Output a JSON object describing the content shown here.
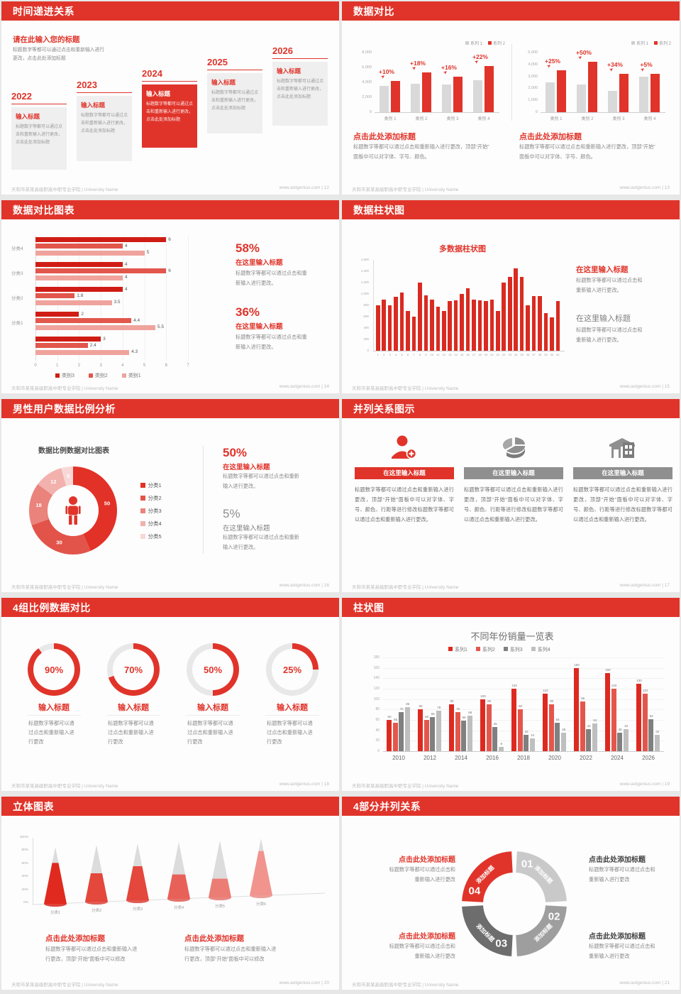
{
  "footer": {
    "left": "天和市某某高级职高中职专业学院 | University Name",
    "site": "www.aotgenius.com"
  },
  "colors": {
    "accent": "#e0342a",
    "red_mid": "#e4564c",
    "red_light": "#f0a39d",
    "gray_bar": "#d9d9d9",
    "gray_dark": "#808080",
    "gray_light": "#bfbfbf"
  },
  "slides": {
    "s12": {
      "title": "时间递进关系",
      "footer_right": "www.aotgenius.com  | 12",
      "heading": "请在此输入您的标题",
      "body_lines": [
        "标题数字等都可以通过点击和重新输入进行",
        "更改，点击此处添加标题"
      ],
      "years": [
        "2022",
        "2023",
        "2024",
        "2025",
        "2026"
      ],
      "highlight_index": 2,
      "item_title": "输入标题",
      "item_body": "标题数字等都可以通过点击和重新输入进行更改，点击此处添加标题"
    },
    "s13": {
      "title": "数据对比",
      "footer_right": "www.aotgenius.com  | 13",
      "legend": [
        "系列 1",
        "系列 2"
      ],
      "heading": "点击此处添加标题",
      "body_lines": [
        "标题数字等都可以通过点击和重新输入进行更改，顶部“开始”",
        "面板中可以对字体、字号、颜色。"
      ],
      "charts": [
        {
          "type": "bar",
          "ymax": 8000,
          "yticks": [
            "8,000",
            "6,000",
            "4,000",
            "2,000",
            "0"
          ],
          "categories": [
            "类别 1",
            "类别 2",
            "类别 3",
            "类别 4"
          ],
          "series": [
            {
              "name": "系列 1",
              "values": [
                3500,
                3800,
                3700,
                4300
              ]
            },
            {
              "name": "系列 2",
              "values": [
                4200,
                5300,
                4800,
                6200
              ]
            }
          ],
          "labels": [
            "+10%",
            "+18%",
            "+16%",
            "+22%"
          ]
        },
        {
          "type": "bar",
          "ymax": 5000,
          "yticks": [
            "5,000",
            "4,000",
            "3,000",
            "2,000",
            "1,000",
            "0"
          ],
          "categories": [
            "类别 1",
            "类别 2",
            "类别 3",
            "类别 4"
          ],
          "series": [
            {
              "name": "系列 1",
              "values": [
                2500,
                2300,
                1800,
                3000
              ]
            },
            {
              "name": "系列 2",
              "values": [
                3500,
                4200,
                3200,
                3200
              ]
            }
          ],
          "labels": [
            "+25%",
            "+50%",
            "+34%",
            "+5%"
          ]
        }
      ]
    },
    "s14": {
      "title": "数据对比图表",
      "footer_right": "www.aotgenius.com  | 14",
      "chart": {
        "type": "bar-horizontal",
        "xmax": 7,
        "xticks": [
          "0",
          "1",
          "2",
          "3",
          "4",
          "5",
          "6",
          "7"
        ],
        "groups": [
          {
            "label": "分类4",
            "values": [
              6,
              4,
              5
            ]
          },
          {
            "label": "分类3",
            "values": [
              4,
              6,
              4
            ]
          },
          {
            "label": "分类2",
            "values": [
              4,
              1.8,
              3.5
            ]
          },
          {
            "label": "分类1",
            "values": [
              2,
              4.4,
              5.5
            ]
          },
          {
            "label": "",
            "values": [
              3,
              2.4,
              4.3
            ]
          }
        ],
        "legend": [
          "类别3",
          "类别2",
          "类别1"
        ]
      },
      "stats": [
        {
          "pct": "58%",
          "heading": "在这里输入标题",
          "body_lines": [
            "标题数字等都可以通过点击和重",
            "新输入进行更改。"
          ]
        },
        {
          "pct": "36%",
          "heading": "在这里输入标题",
          "body_lines": [
            "标题数字等都可以通过点击和重",
            "新输入进行更改。"
          ]
        }
      ]
    },
    "s15": {
      "title": "数据柱状图",
      "footer_right": "www.aotgenius.com  | 15",
      "chart_title": "多数据柱状图",
      "chart": {
        "type": "bar",
        "ymax": 1600,
        "yticks": [
          "1,600",
          "1,400",
          "1,200",
          "1,000",
          "800",
          "600",
          "400",
          "200",
          "0"
        ],
        "xlabels": [
          "1",
          "2",
          "3",
          "4",
          "5",
          "6",
          "7",
          "8",
          "9",
          "10",
          "11",
          "12",
          "13",
          "14",
          "15",
          "16",
          "17",
          "18",
          "19",
          "20",
          "21",
          "22",
          "23",
          "24",
          "25",
          "26",
          "27",
          "28",
          "29",
          "30",
          "31"
        ],
        "values": [
          800,
          900,
          800,
          950,
          1020,
          700,
          600,
          1200,
          980,
          900,
          780,
          700,
          880,
          890,
          1000,
          1100,
          900,
          890,
          880,
          900,
          700,
          1200,
          1300,
          1450,
          1300,
          800,
          960,
          960,
          660,
          590,
          870
        ]
      },
      "stats": [
        {
          "heading": "在这里输入标题",
          "style": "red",
          "body_lines": [
            "标题数字等都可以通过点击和",
            "重新输入进行更改。"
          ]
        },
        {
          "heading": "在这里输入标题",
          "style": "gray",
          "body_lines": [
            "标题数字等都可以通过点击和",
            "重新输入进行更改。"
          ]
        }
      ]
    },
    "s16": {
      "title": "男性用户数据比例分析",
      "footer_right": "www.aotgenius.com  | 16",
      "chart_title": "数据比例数据对比图表",
      "chart": {
        "type": "pie",
        "slices": [
          50,
          30,
          18,
          12,
          5
        ],
        "labels": [
          "50",
          "30",
          "18",
          "12",
          "5"
        ],
        "legend": [
          "分类1",
          "分类2",
          "分类3",
          "分类4",
          "分类5"
        ]
      },
      "stats": [
        {
          "pct": "50%",
          "heading": "在这里输入标题",
          "style": "red",
          "body_lines": [
            "标题数字等都可以通过点击和重新",
            "输入进行更改。"
          ]
        },
        {
          "pct": "5%",
          "heading": "在这里输入标题",
          "style": "gray",
          "body_lines": [
            "标题数字等都可以通过点击和重新",
            "输入进行更改。"
          ]
        }
      ]
    },
    "s17": {
      "title": "并列关系图示",
      "footer_right": "www.aotgenius.com  | 17",
      "banner": "在这里输入标题",
      "icons": [
        "add-user",
        "pie-3d",
        "building"
      ],
      "body": "标题数字等都可以通过点击和重新输入进行更改，顶部“开始”面板中可以对字体、字号、颜色、行距等进行修改标题数字等都可以通过点击和重新输入进行更改。"
    },
    "s18": {
      "title": "4组比例数据对比",
      "footer_right": "www.aotgenius.com  | 18",
      "gauges": [
        {
          "pct": 90,
          "label": "90%"
        },
        {
          "pct": 70,
          "label": "70%"
        },
        {
          "pct": 50,
          "label": "50%"
        },
        {
          "pct": 25,
          "label": "25%"
        }
      ],
      "item_title": "输入标题",
      "body_lines": [
        "标题数字等都可以通",
        "过点击和重新输入进",
        "行更改"
      ]
    },
    "s19": {
      "title": "柱状图",
      "footer_right": "www.aotgenius.com  | 19",
      "chart_title": "不同年份销量一览表",
      "chart": {
        "type": "bar",
        "ymax": 180,
        "yticks": [
          "180",
          "160",
          "140",
          "120",
          "100",
          "80",
          "60",
          "40",
          "20",
          "0"
        ],
        "categories": [
          "2010",
          "2012",
          "2014",
          "2016",
          "2018",
          "2020",
          "2022",
          "2024",
          "2026"
        ],
        "series": [
          {
            "name": "系列1",
            "values": [
              60,
              80,
              90,
              100,
              120,
              110,
              160,
              150,
              130
            ]
          },
          {
            "name": "系列2",
            "values": [
              55,
              60,
              75,
              90,
              80,
              90,
              96,
              120,
              110
            ]
          },
          {
            "name": "系列3",
            "values": [
              75,
              65,
              58,
              46,
              32,
              54,
              42,
              36,
              62
            ]
          },
          {
            "name": "系列4",
            "values": [
              85,
              78,
              68,
              8,
              24,
              36,
              53,
              42,
              32
            ]
          }
        ]
      }
    },
    "s20": {
      "title": "立体图表",
      "footer_right": "www.aotgenius.com  | 20",
      "chart": {
        "type": "cone",
        "yticks": [
          "100%",
          "80%",
          "60%",
          "40%",
          "20%",
          "0%"
        ],
        "categories": [
          "分类1",
          "分类2",
          "分类3",
          "分类4",
          "分类5",
          "分类6"
        ],
        "values": [
          72,
          50,
          60,
          43,
          33,
          78
        ]
      },
      "blocks": [
        {
          "heading": "点击此处添加标题",
          "body_lines": [
            "标题数字等都可以通过点击和重新输入进",
            "行更改，顶部“开始”面板中可以修改"
          ]
        },
        {
          "heading": "点击此处添加标题",
          "body_lines": [
            "标题数字等都可以通过点击和重新输入进",
            "行更改，顶部“开始”面板中可以修改"
          ]
        }
      ]
    },
    "s21": {
      "title": "4部分并列关系",
      "footer_right": "www.aotgenius.com  | 21",
      "segments": [
        {
          "num": "01",
          "label": "添加标题"
        },
        {
          "num": "02",
          "label": "添加标题"
        },
        {
          "num": "03",
          "label": "添加标题"
        },
        {
          "num": "04",
          "label": "添加标题"
        }
      ],
      "blocks_left": [
        {
          "heading": "点击此处添加标题",
          "body_lines": [
            "标题数字等都可以通过点击和",
            "重新输入进行更改"
          ]
        },
        {
          "heading": "点击此处添加标题",
          "body_lines": [
            "标题数字等都可以通过点击和",
            "重新输入进行更改"
          ]
        }
      ],
      "blocks_right": [
        {
          "heading": "点击此处添加标题",
          "body_lines": [
            "标题数字等都可以通过点击和",
            "重新输入进行更改"
          ]
        },
        {
          "heading": "点击此处添加标题",
          "body_lines": [
            "标题数字等都可以通过点击和",
            "重新输入进行更改"
          ]
        }
      ]
    }
  }
}
